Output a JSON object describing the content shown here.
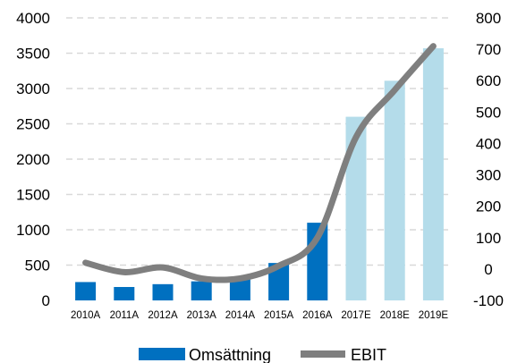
{
  "chart_data": {
    "type": "bar",
    "categories": [
      "2010A",
      "2011A",
      "2012A",
      "2013A",
      "2014A",
      "2015A",
      "2016A",
      "2017E",
      "2018E",
      "2019E"
    ],
    "series": [
      {
        "name": "Omsättning",
        "type": "bar",
        "axis": "left",
        "values": [
          260,
          190,
          230,
          270,
          300,
          530,
          1100,
          2600,
          3110,
          3570
        ],
        "colors": [
          "#0070c0",
          "#0070c0",
          "#0070c0",
          "#0070c0",
          "#0070c0",
          "#0070c0",
          "#0070c0",
          "#b4dcea",
          "#b4dcea",
          "#b4dcea"
        ]
      },
      {
        "name": "EBIT",
        "type": "line",
        "axis": "right",
        "values": [
          20,
          -10,
          5,
          -30,
          -30,
          10,
          100,
          420,
          570,
          710
        ],
        "color": "#7f7f7f"
      }
    ],
    "yaxis_left": {
      "ylim": [
        0,
        4000
      ],
      "ticks": [
        "0",
        "500",
        "1000",
        "1500",
        "2000",
        "2500",
        "3000",
        "3500",
        "4000"
      ]
    },
    "yaxis_right": {
      "ylim": [
        -100,
        800
      ],
      "ticks": [
        "-100",
        "0",
        "100",
        "200",
        "300",
        "400",
        "500",
        "600",
        "700",
        "800"
      ]
    },
    "grid": "horizontal-dashed",
    "legend_position": "bottom"
  }
}
